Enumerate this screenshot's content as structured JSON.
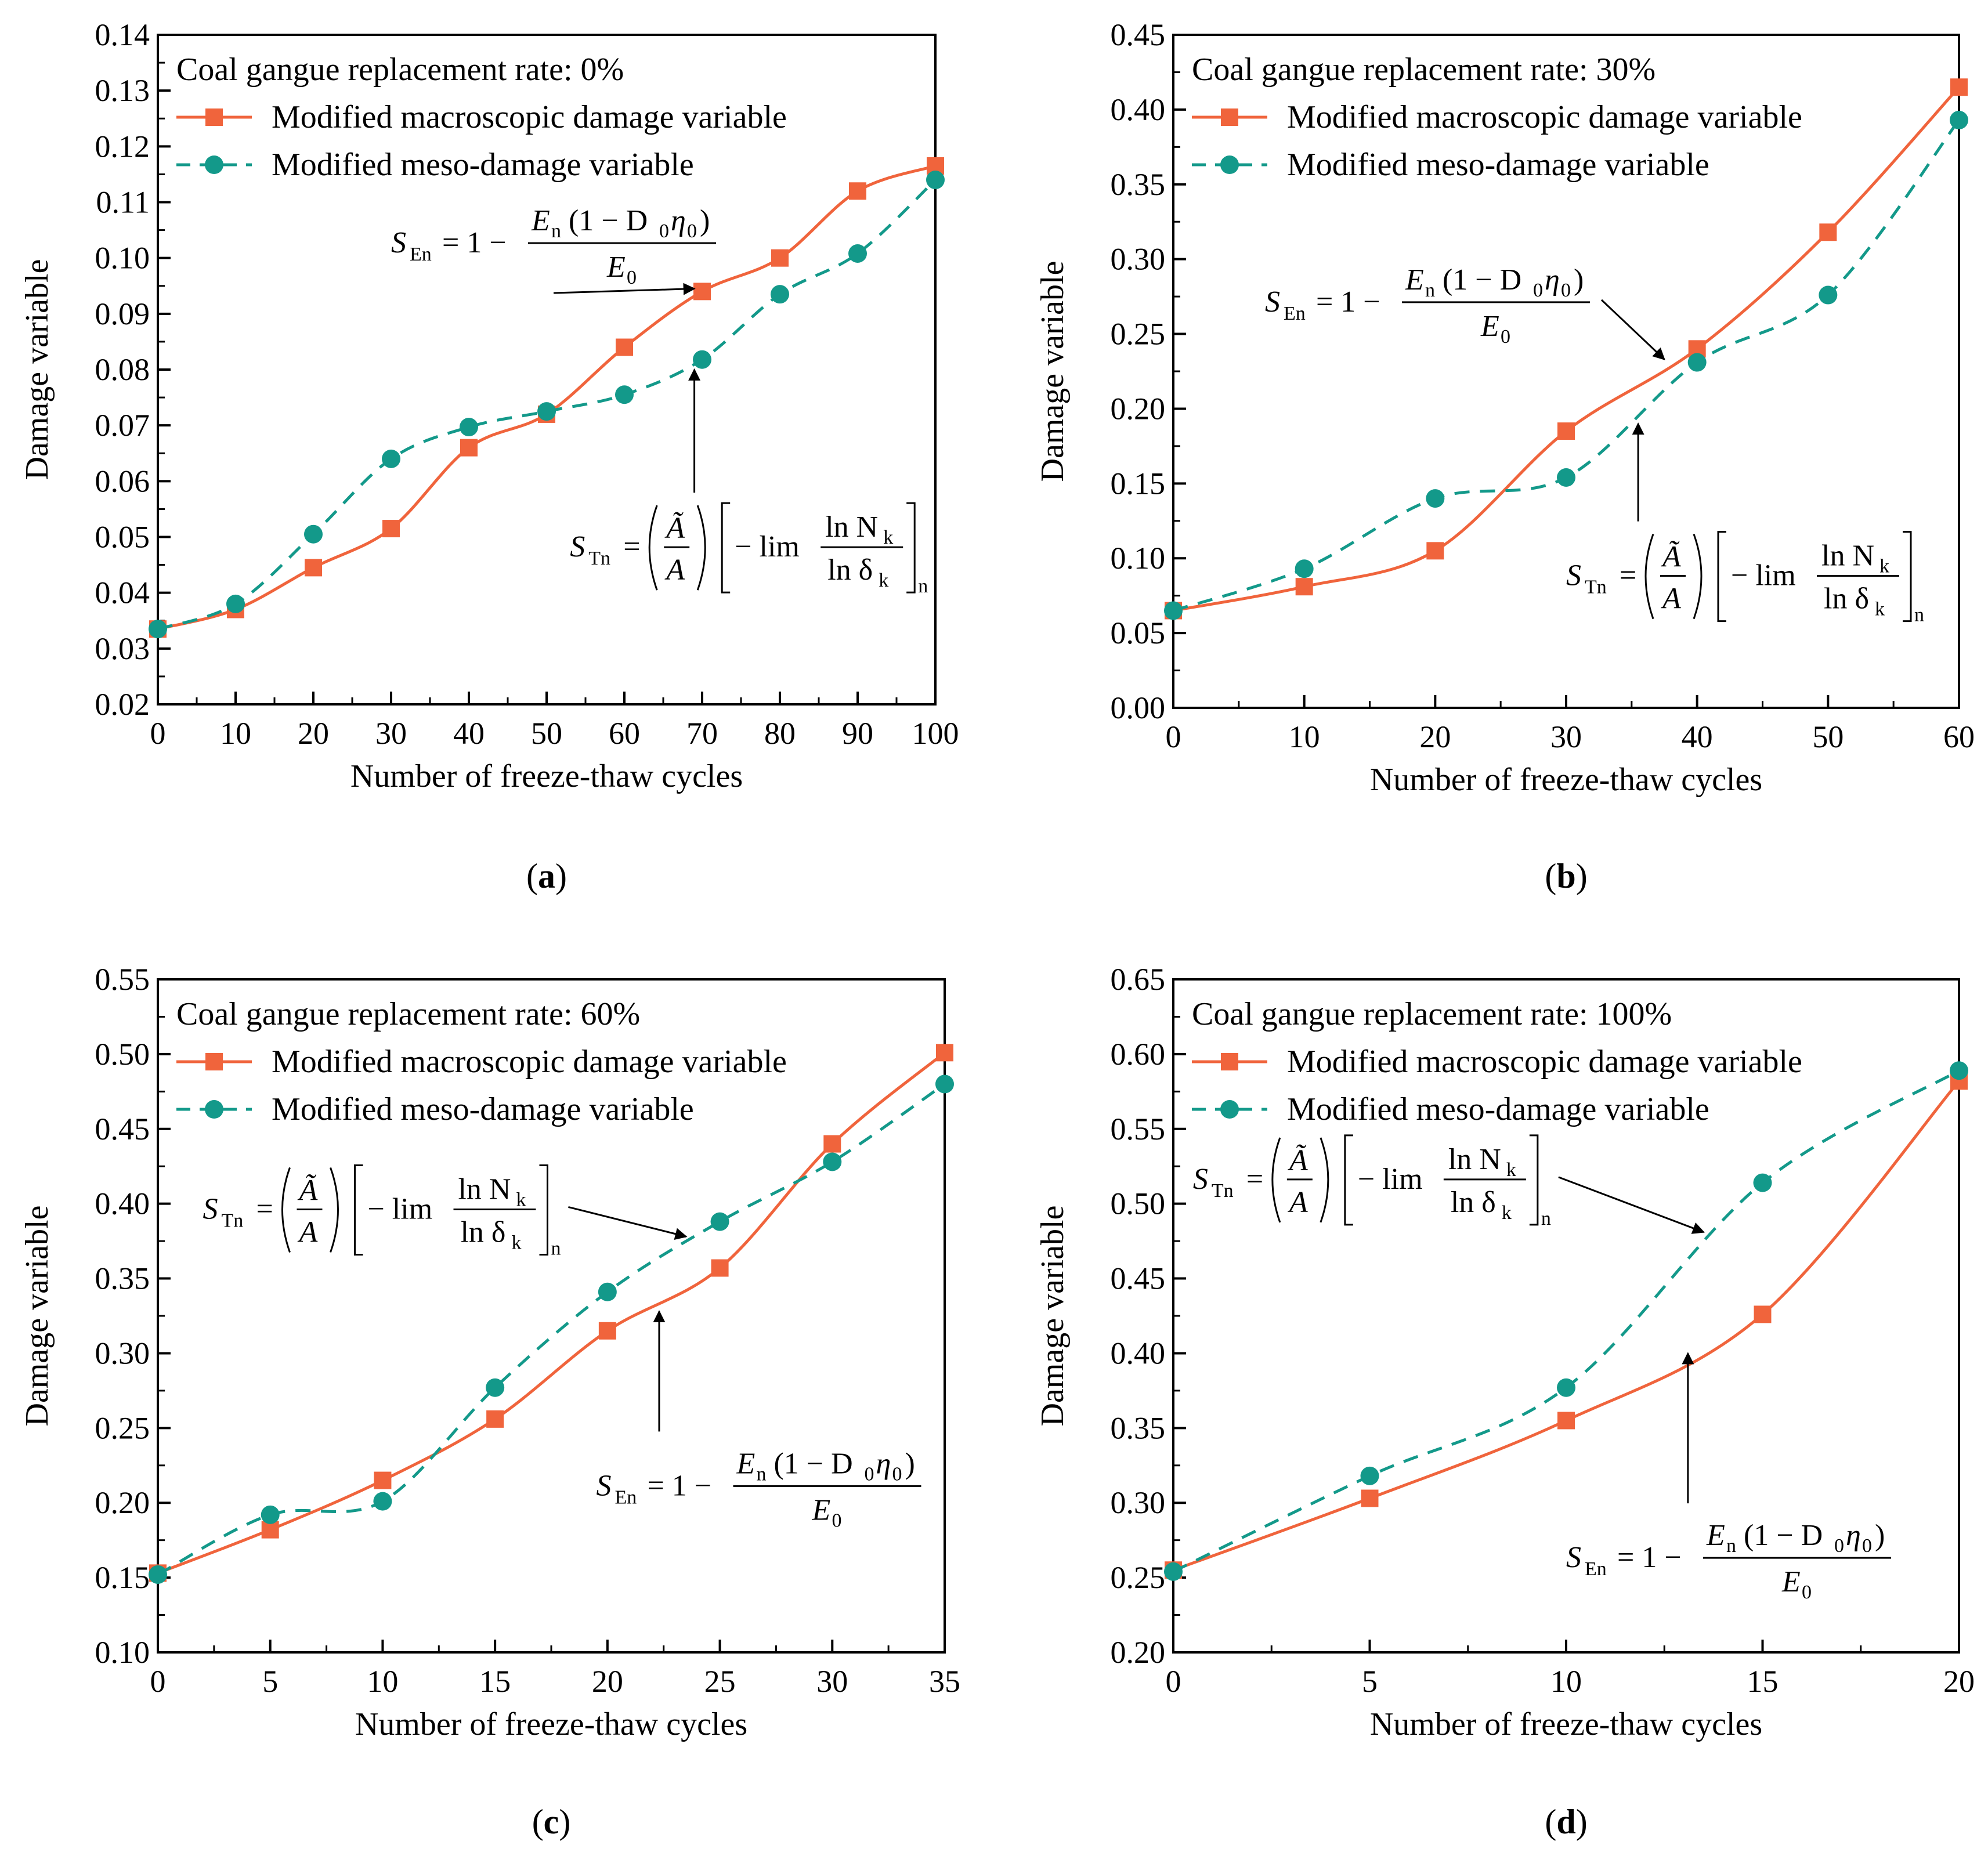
{
  "colors": {
    "macro": "#F0643C",
    "meso": "#13998A",
    "axis": "#000000"
  },
  "legend": {
    "macro_label": "Modified macroscopic damage variable",
    "meso_label": "Modified meso-damage variable"
  },
  "equations": {
    "s_en": {
      "lhs": "S",
      "lhs_sub": "En",
      "rhs_prefix": "= 1 −",
      "numerator": "E",
      "numerator_sub": "n",
      "numerator_rest": "(1 − D",
      "numerator_rest_sub": "0",
      "numerator_tail": "η",
      "numerator_tail_sub": "0",
      "numerator_close": ")",
      "denominator": "E",
      "denominator_sub": "0"
    },
    "s_tn": {
      "lhs": "S",
      "lhs_sub": "Tn",
      "rhs_prefix": "=",
      "frac_num": "Ã",
      "frac_den": "A",
      "minus_lim": "− lim",
      "ln_num": "ln N",
      "ln_num_sub": "k",
      "ln_den": "ln δ",
      "ln_den_sub": "k",
      "outer_sub": "n"
    }
  },
  "chart_data": [
    {
      "type": "line",
      "panel_label": "a",
      "title": "Coal gangue replacement rate: 0%",
      "xlabel": "Number of freeze-thaw cycles",
      "ylabel": "Damage variable",
      "xlim": [
        0,
        100
      ],
      "ylim": [
        0.02,
        0.14
      ],
      "xticks": [
        0,
        10,
        20,
        30,
        40,
        50,
        60,
        70,
        80,
        90,
        100
      ],
      "xtick_labels": [
        "0",
        "10",
        "20",
        "30",
        "40",
        "50",
        "60",
        "70",
        "80",
        "90",
        "100"
      ],
      "yticks": [
        0.02,
        0.03,
        0.04,
        0.05,
        0.06,
        0.07,
        0.08,
        0.09,
        0.1,
        0.11,
        0.12,
        0.13,
        0.14
      ],
      "ytick_labels": [
        "0.02",
        "0.03",
        "0.04",
        "0.05",
        "0.06",
        "0.07",
        "0.08",
        "0.09",
        "0.10",
        "0.11",
        "0.12",
        "0.13",
        "0.14"
      ],
      "x": [
        0,
        10,
        20,
        30,
        40,
        50,
        60,
        70,
        80,
        90,
        100
      ],
      "series": [
        {
          "name": "Modified macroscopic damage variable",
          "values": [
            0.0335,
            0.037,
            0.0445,
            0.0515,
            0.066,
            0.072,
            0.084,
            0.094,
            0.1,
            0.112,
            0.1165
          ]
        },
        {
          "name": "Modified meso-damage variable",
          "values": [
            0.0335,
            0.038,
            0.0505,
            0.064,
            0.0697,
            0.0725,
            0.0755,
            0.0818,
            0.0935,
            0.1008,
            0.114
          ]
        }
      ],
      "annotations": [
        {
          "eq": "s_en",
          "target_series": 0,
          "text_at": [
            30,
            0.101
          ],
          "arrow_to": [
            69,
            0.0945
          ]
        },
        {
          "eq": "s_tn",
          "target_series": 1,
          "text_at": [
            53,
            0.0465
          ],
          "arrow_to": [
            69,
            0.08
          ]
        }
      ]
    },
    {
      "type": "line",
      "panel_label": "b",
      "title": "Coal gangue replacement rate: 30%",
      "xlabel": "Number of freeze-thaw cycles",
      "ylabel": "Damage variable",
      "xlim": [
        0,
        60
      ],
      "ylim": [
        0.0,
        0.45
      ],
      "xticks": [
        0,
        10,
        20,
        30,
        40,
        50,
        60
      ],
      "xtick_labels": [
        "0",
        "10",
        "20",
        "30",
        "40",
        "50",
        "60"
      ],
      "yticks": [
        0.0,
        0.05,
        0.1,
        0.15,
        0.2,
        0.25,
        0.3,
        0.35,
        0.4,
        0.45
      ],
      "ytick_labels": [
        "0.00",
        "0.05",
        "0.10",
        "0.15",
        "0.20",
        "0.25",
        "0.30",
        "0.35",
        "0.40",
        "0.45"
      ],
      "x": [
        0,
        10,
        20,
        30,
        40,
        50,
        60
      ],
      "series": [
        {
          "name": "Modified macroscopic damage variable",
          "values": [
            0.065,
            0.081,
            0.105,
            0.185,
            0.24,
            0.318,
            0.415
          ]
        },
        {
          "name": "Modified meso-damage variable",
          "values": [
            0.065,
            0.093,
            0.14,
            0.154,
            0.231,
            0.276,
            0.393
          ]
        }
      ],
      "annotations": [
        {
          "eq": "s_en",
          "target_series": 0,
          "text_at": [
            7,
            0.265
          ],
          "arrow_to": [
            37.5,
            0.233
          ]
        },
        {
          "eq": "s_tn",
          "target_series": 1,
          "text_at": [
            30,
            0.082
          ],
          "arrow_to": [
            35.5,
            0.19
          ]
        }
      ]
    },
    {
      "type": "line",
      "panel_label": "c",
      "title": "Coal gangue replacement rate: 60%",
      "xlabel": "Number of freeze-thaw cycles",
      "ylabel": "Damage variable",
      "xlim": [
        0,
        35
      ],
      "ylim": [
        0.1,
        0.55
      ],
      "xticks": [
        0,
        5,
        10,
        15,
        20,
        25,
        30,
        35
      ],
      "xtick_labels": [
        "0",
        "5",
        "10",
        "15",
        "20",
        "25",
        "30",
        "35"
      ],
      "yticks": [
        0.1,
        0.15,
        0.2,
        0.25,
        0.3,
        0.35,
        0.4,
        0.45,
        0.5,
        0.55
      ],
      "ytick_labels": [
        "0.10",
        "0.15",
        "0.20",
        "0.25",
        "0.30",
        "0.35",
        "0.40",
        "0.45",
        "0.50",
        "0.55"
      ],
      "x": [
        0,
        5,
        10,
        15,
        20,
        25,
        30,
        35
      ],
      "series": [
        {
          "name": "Modified macroscopic damage variable",
          "values": [
            0.153,
            0.182,
            0.215,
            0.256,
            0.315,
            0.357,
            0.44,
            0.501
          ]
        },
        {
          "name": "Modified meso-damage variable",
          "values": [
            0.152,
            0.192,
            0.201,
            0.277,
            0.341,
            0.388,
            0.428,
            0.48
          ]
        }
      ],
      "annotations": [
        {
          "eq": "s_tn",
          "target_series": 1,
          "text_at": [
            2,
            0.39
          ],
          "arrow_to": [
            23.5,
            0.378
          ]
        },
        {
          "eq": "s_en",
          "target_series": 0,
          "text_at": [
            19.5,
            0.205
          ],
          "arrow_to": [
            22.3,
            0.328
          ]
        }
      ]
    },
    {
      "type": "line",
      "panel_label": "d",
      "title": "Coal gangue replacement rate: 100%",
      "xlabel": "Number of freeze-thaw cycles",
      "ylabel": "Damage variable",
      "xlim": [
        0,
        20
      ],
      "ylim": [
        0.2,
        0.65
      ],
      "xticks": [
        0,
        5,
        10,
        15,
        20
      ],
      "xtick_labels": [
        "0",
        "5",
        "10",
        "15",
        "20"
      ],
      "yticks": [
        0.2,
        0.25,
        0.3,
        0.35,
        0.4,
        0.45,
        0.5,
        0.55,
        0.6,
        0.65
      ],
      "ytick_labels": [
        "0.20",
        "0.25",
        "0.30",
        "0.35",
        "0.40",
        "0.45",
        "0.50",
        "0.55",
        "0.60",
        "0.65"
      ],
      "x": [
        0,
        5,
        10,
        15,
        20
      ],
      "series": [
        {
          "name": "Modified macroscopic damage variable",
          "values": [
            0.255,
            0.303,
            0.355,
            0.426,
            0.582
          ]
        },
        {
          "name": "Modified meso-damage variable",
          "values": [
            0.254,
            0.318,
            0.377,
            0.514,
            0.589
          ]
        }
      ],
      "annotations": [
        {
          "eq": "s_tn",
          "target_series": 1,
          "text_at": [
            0.5,
            0.51
          ],
          "arrow_to": [
            13.5,
            0.481
          ]
        },
        {
          "eq": "s_en",
          "target_series": 0,
          "text_at": [
            10,
            0.257
          ],
          "arrow_to": [
            13.1,
            0.4
          ]
        }
      ]
    }
  ]
}
